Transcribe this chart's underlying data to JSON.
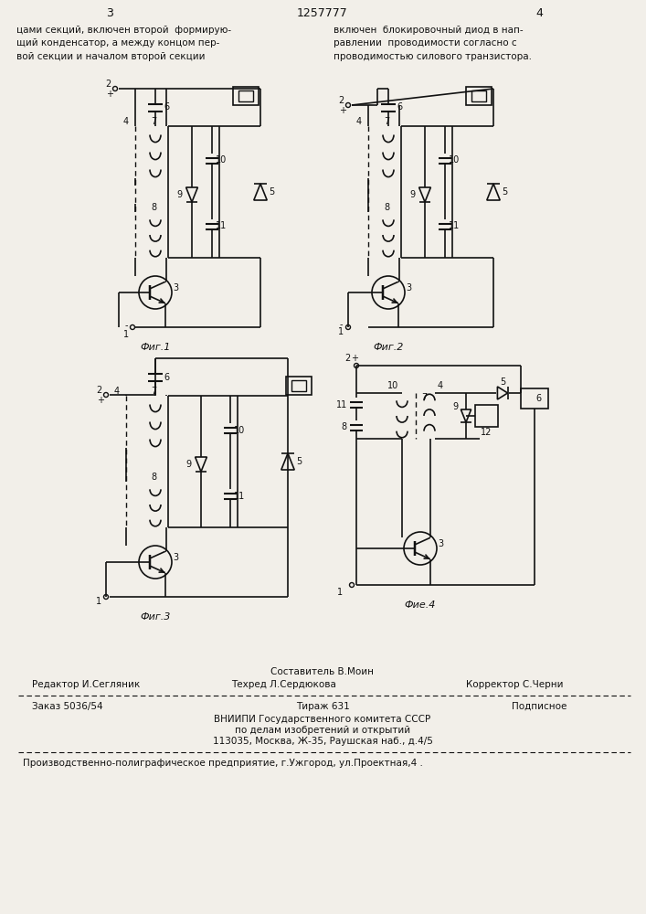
{
  "page_width": 7.07,
  "page_height": 10.0,
  "bg_color": "#f2efe9",
  "header_num_left": "3",
  "header_num_center": "1257777",
  "header_num_right": "4",
  "header_text_left": "цами секций, включен второй  формирую-\nщий конденсатор, а между концом пер-\nвой секции и началом второй секции",
  "header_text_right": "включен  блокировочный диод в нап-\nравлении  проводимости согласно с\nпроводимостью силового транзистора.",
  "fig1_label": "Фиг.1",
  "fig2_label": "Фиг.2",
  "fig3_label": "Фиг.3",
  "fig4_label": "Фие.4",
  "footer_composer": "Составитель В.Моин",
  "footer_editor": "Редактор И.Сегляник",
  "footer_techred": "Техред Л.Сердюкова",
  "footer_corrector": "Корректор С.Черни",
  "footer_order": "Заказ 5036/54",
  "footer_tirazh": "Тираж 631",
  "footer_podpisnoe": "Подписное",
  "footer_vniippi": "ВНИИПИ Государственного комитета СССР",
  "footer_po_delam": "по делам изобретений и открытий",
  "footer_address": "113035, Москва, Ж-35, Раушская наб., д.4/5",
  "footer_production": "Производственно-полиграфическое предприятие, г.Ужгород, ул.Проектная,4 .",
  "line_color": "#111111",
  "text_color": "#111111"
}
